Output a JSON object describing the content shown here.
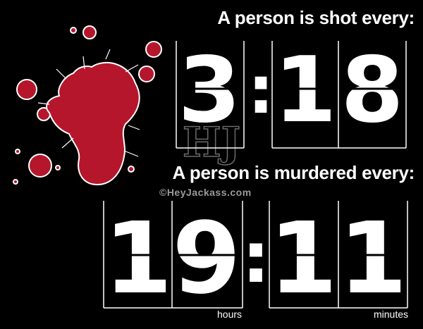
{
  "shot": {
    "headline": "A person is shot every:",
    "minute_digit": "3",
    "separator": ":",
    "second_digits": [
      "1",
      "8"
    ]
  },
  "murder": {
    "headline": "A person is murdered every:",
    "hour_digits": [
      "1",
      "9"
    ],
    "separator": ":",
    "minute_digits": [
      "1",
      "1"
    ]
  },
  "units": {
    "hours": "hours",
    "minutes": "minutes"
  },
  "watermark": {
    "logo": "HJ",
    "text": "©HeyJackass.com"
  },
  "colors": {
    "background": "#000000",
    "text": "#ffffff",
    "blood": "#b5162b"
  },
  "icons": {
    "splatter": "blood-splatter-icon"
  }
}
